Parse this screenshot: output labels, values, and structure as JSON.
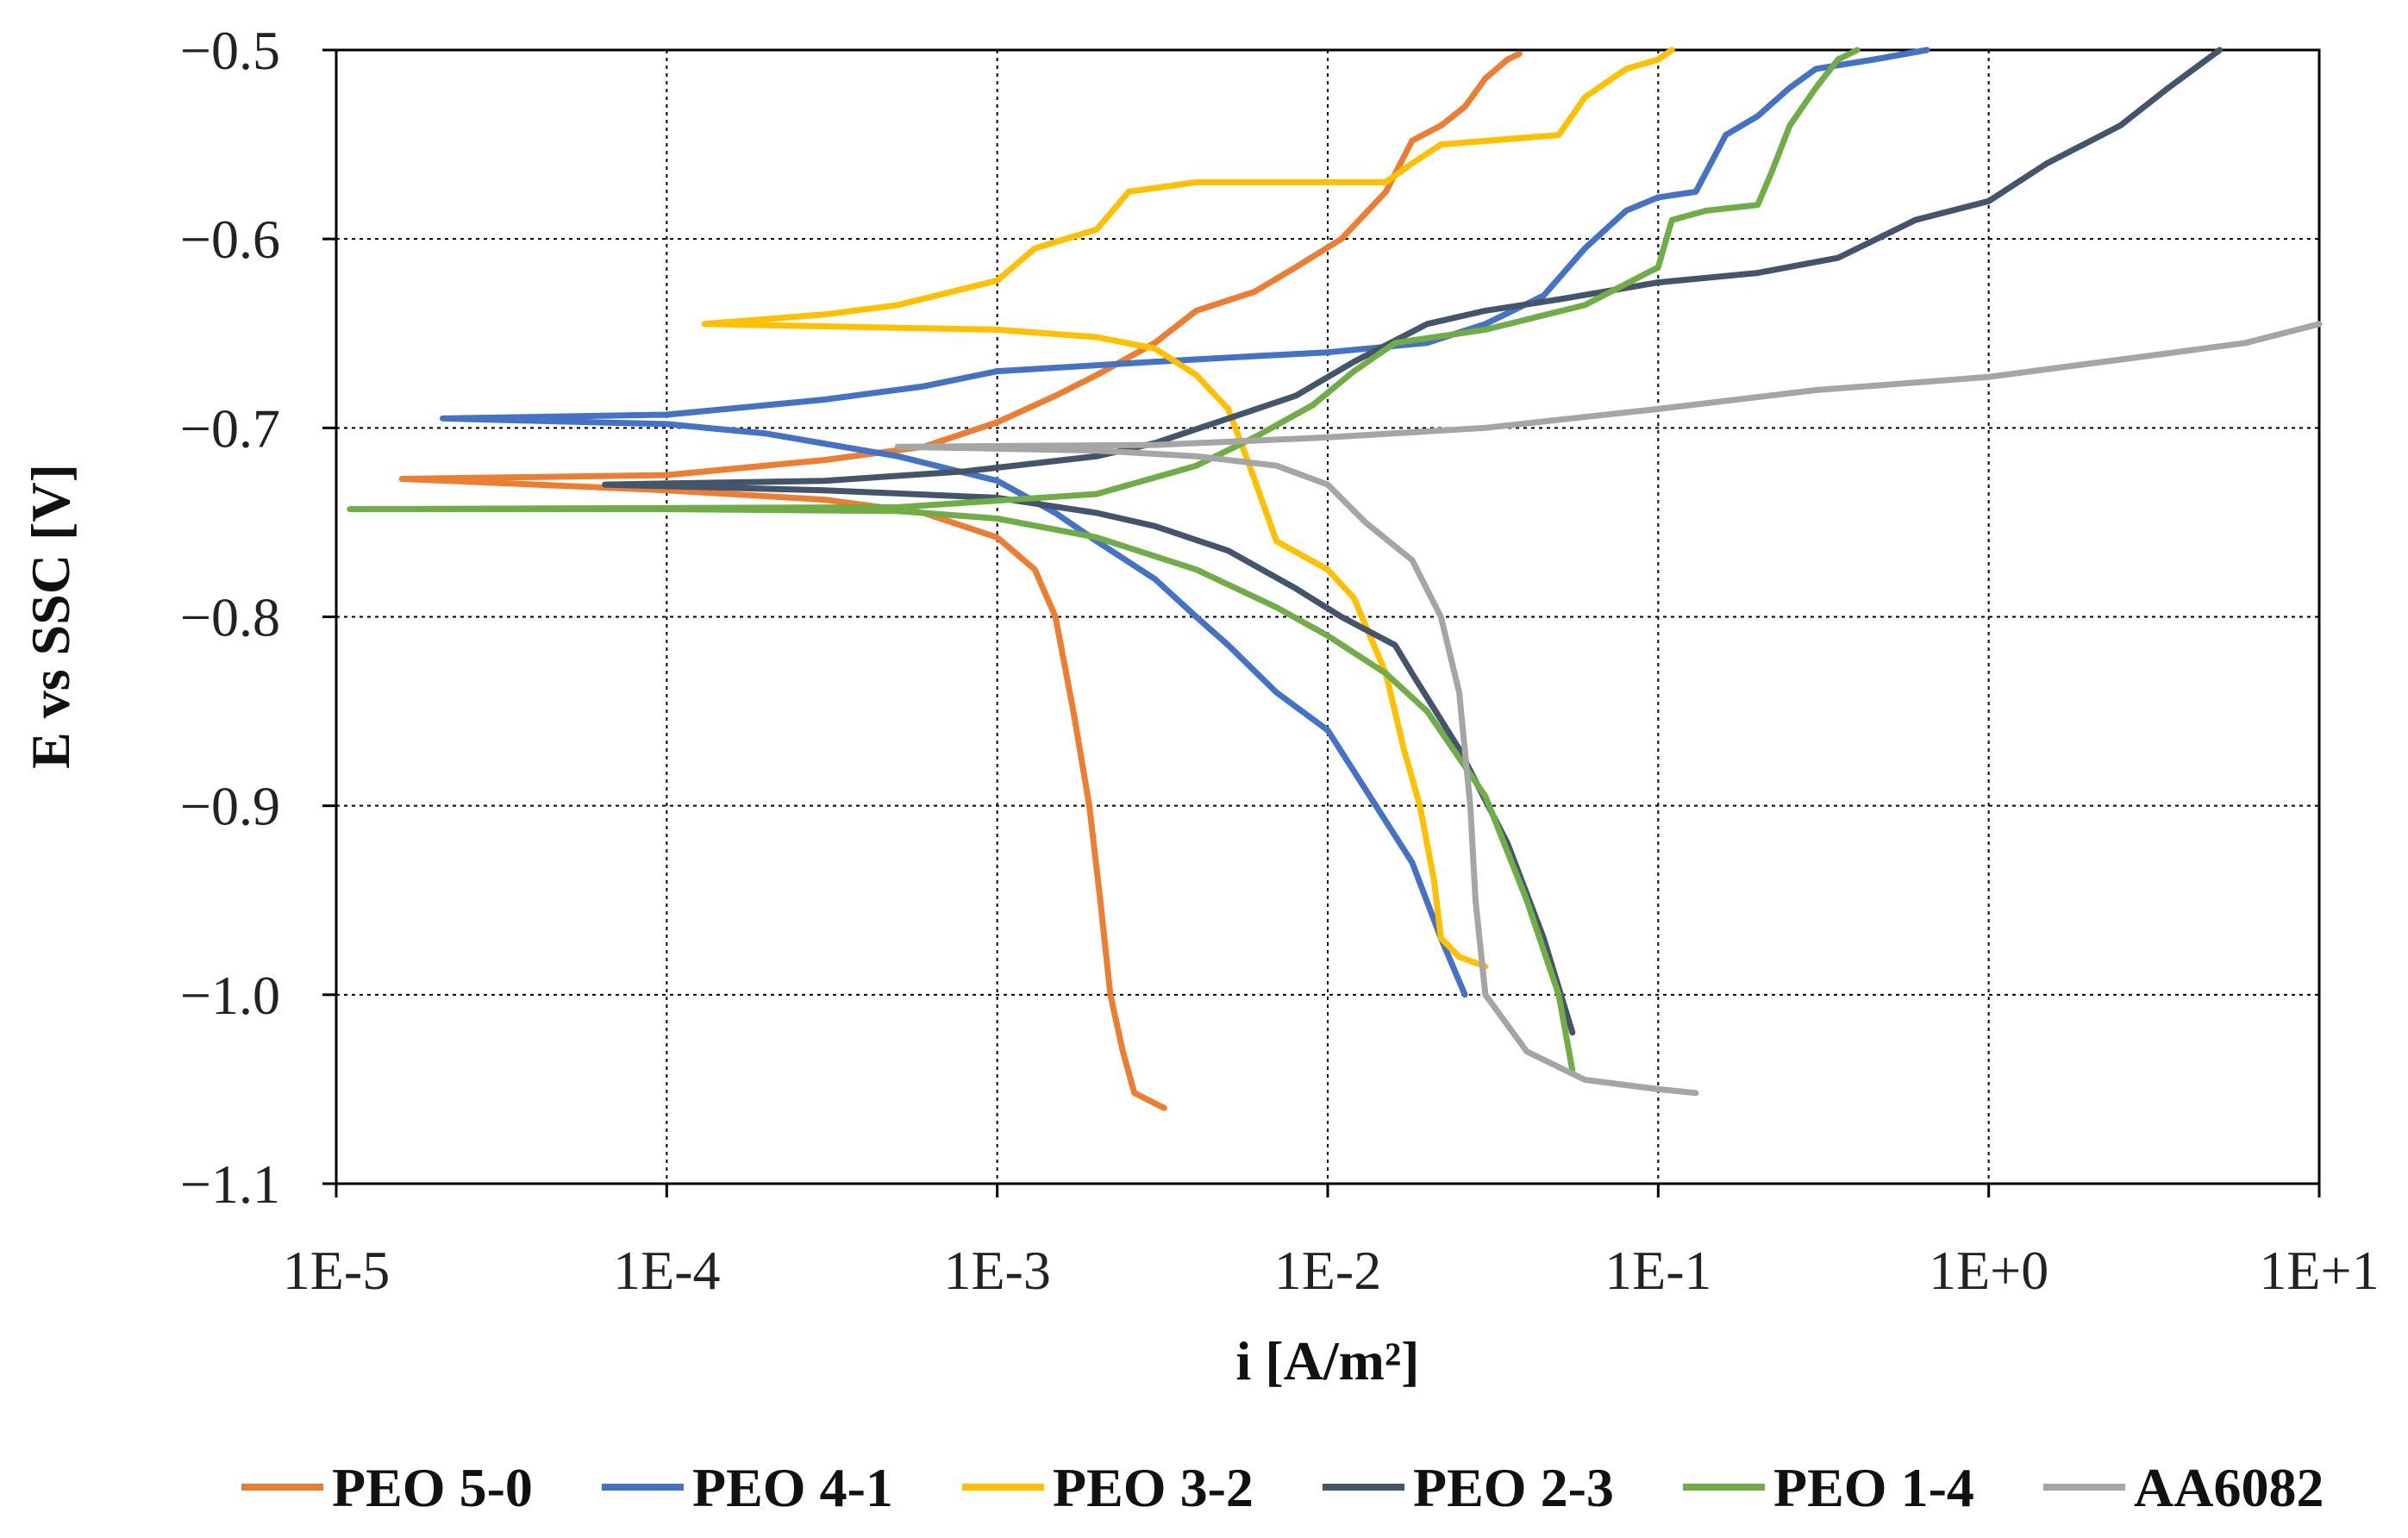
{
  "chart_data": {
    "type": "line",
    "xscale": "log",
    "xlabel": "i [A/m²]",
    "ylabel": "E  vs SSC [V]",
    "xlim": [
      1e-05,
      10
    ],
    "ylim": [
      -1.1,
      -0.5
    ],
    "grid": true,
    "legend_position": "bottom",
    "x_ticks": [
      {
        "value": 1e-05,
        "label": "1E-5"
      },
      {
        "value": 0.0001,
        "label": "1E-4"
      },
      {
        "value": 0.001,
        "label": "1E-3"
      },
      {
        "value": 0.01,
        "label": "1E-2"
      },
      {
        "value": 0.1,
        "label": "1E-1"
      },
      {
        "value": 1,
        "label": "1E+0"
      },
      {
        "value": 10,
        "label": "1E+1"
      }
    ],
    "y_ticks": [
      {
        "value": -0.5,
        "label": "−0.5"
      },
      {
        "value": -0.6,
        "label": "−0.6"
      },
      {
        "value": -0.7,
        "label": "−0.7"
      },
      {
        "value": -0.8,
        "label": "−0.8"
      },
      {
        "value": -0.9,
        "label": "−0.9"
      },
      {
        "value": -1.0,
        "label": "−1.0"
      },
      {
        "value": -1.1,
        "label": "−1.1"
      }
    ],
    "series": [
      {
        "name": "PEO 5-0",
        "color": "#ED7D31",
        "cathodic": [
          [
            1.58e-05,
            -0.727
          ],
          [
            0.0001,
            -0.733
          ],
          [
            0.0003,
            -0.738
          ],
          [
            0.0006,
            -0.745
          ],
          [
            0.001,
            -0.758
          ],
          [
            0.0013,
            -0.775
          ],
          [
            0.0015,
            -0.8
          ],
          [
            0.0017,
            -0.85
          ],
          [
            0.0019,
            -0.9
          ],
          [
            0.00205,
            -0.95
          ],
          [
            0.0022,
            -1.0
          ],
          [
            0.0024,
            -1.03
          ],
          [
            0.0026,
            -1.052
          ],
          [
            0.0032,
            -1.06
          ]
        ],
        "anodic": [
          [
            1.58e-05,
            -0.727
          ],
          [
            0.0001,
            -0.725
          ],
          [
            0.0003,
            -0.717
          ],
          [
            0.0006,
            -0.71
          ],
          [
            0.001,
            -0.697
          ],
          [
            0.0015,
            -0.683
          ],
          [
            0.002,
            -0.672
          ],
          [
            0.003,
            -0.655
          ],
          [
            0.004,
            -0.638
          ],
          [
            0.006,
            -0.628
          ],
          [
            0.008,
            -0.615
          ],
          [
            0.011,
            -0.6
          ],
          [
            0.015,
            -0.575
          ],
          [
            0.018,
            -0.548
          ],
          [
            0.022,
            -0.54
          ],
          [
            0.026,
            -0.53
          ],
          [
            0.03,
            -0.515
          ],
          [
            0.035,
            -0.505
          ],
          [
            0.038,
            -0.502
          ]
        ]
      },
      {
        "name": "PEO 4-1",
        "color": "#4472C4",
        "cathodic": [
          [
            2.1e-05,
            -0.695
          ],
          [
            0.0001,
            -0.698
          ],
          [
            0.0002,
            -0.703
          ],
          [
            0.0005,
            -0.715
          ],
          [
            0.001,
            -0.728
          ],
          [
            0.0015,
            -0.745
          ],
          [
            0.002,
            -0.76
          ],
          [
            0.003,
            -0.78
          ],
          [
            0.004,
            -0.8
          ],
          [
            0.005,
            -0.815
          ],
          [
            0.007,
            -0.84
          ],
          [
            0.01,
            -0.86
          ],
          [
            0.014,
            -0.9
          ],
          [
            0.018,
            -0.93
          ],
          [
            0.022,
            -0.97
          ],
          [
            0.026,
            -1.0
          ]
        ],
        "anodic": [
          [
            2.1e-05,
            -0.695
          ],
          [
            0.0001,
            -0.693
          ],
          [
            0.0003,
            -0.685
          ],
          [
            0.0006,
            -0.678
          ],
          [
            0.001,
            -0.67
          ],
          [
            0.003,
            -0.665
          ],
          [
            0.006,
            -0.662
          ],
          [
            0.01,
            -0.66
          ],
          [
            0.02,
            -0.655
          ],
          [
            0.03,
            -0.645
          ],
          [
            0.045,
            -0.63
          ],
          [
            0.06,
            -0.605
          ],
          [
            0.08,
            -0.585
          ],
          [
            0.1,
            -0.578
          ],
          [
            0.13,
            -0.575
          ],
          [
            0.16,
            -0.545
          ],
          [
            0.2,
            -0.535
          ],
          [
            0.25,
            -0.52
          ],
          [
            0.3,
            -0.51
          ],
          [
            0.45,
            -0.505
          ],
          [
            0.65,
            -0.5
          ]
        ]
      },
      {
        "name": "PEO 3-2",
        "color": "#FFC000",
        "cathodic": [
          [
            0.00013,
            -0.645
          ],
          [
            0.0005,
            -0.647
          ],
          [
            0.001,
            -0.648
          ],
          [
            0.002,
            -0.652
          ],
          [
            0.003,
            -0.658
          ],
          [
            0.004,
            -0.672
          ],
          [
            0.005,
            -0.69
          ],
          [
            0.0058,
            -0.72
          ],
          [
            0.007,
            -0.76
          ],
          [
            0.01,
            -0.775
          ],
          [
            0.012,
            -0.79
          ],
          [
            0.015,
            -0.83
          ],
          [
            0.017,
            -0.87
          ],
          [
            0.019,
            -0.9
          ],
          [
            0.021,
            -0.94
          ],
          [
            0.022,
            -0.97
          ],
          [
            0.025,
            -0.98
          ],
          [
            0.03,
            -0.985
          ]
        ],
        "anodic": [
          [
            0.00013,
            -0.645
          ],
          [
            0.0003,
            -0.64
          ],
          [
            0.0005,
            -0.635
          ],
          [
            0.001,
            -0.622
          ],
          [
            0.0013,
            -0.605
          ],
          [
            0.002,
            -0.595
          ],
          [
            0.0025,
            -0.575
          ],
          [
            0.004,
            -0.57
          ],
          [
            0.008,
            -0.57
          ],
          [
            0.015,
            -0.57
          ],
          [
            0.018,
            -0.56
          ],
          [
            0.022,
            -0.55
          ],
          [
            0.05,
            -0.545
          ],
          [
            0.06,
            -0.525
          ],
          [
            0.08,
            -0.51
          ],
          [
            0.1,
            -0.505
          ],
          [
            0.11,
            -0.5
          ]
        ]
      },
      {
        "name": "PEO 2-3",
        "color": "#44546A",
        "cathodic": [
          [
            6.5e-05,
            -0.73
          ],
          [
            0.0003,
            -0.733
          ],
          [
            0.001,
            -0.737
          ],
          [
            0.002,
            -0.745
          ],
          [
            0.003,
            -0.752
          ],
          [
            0.005,
            -0.765
          ],
          [
            0.008,
            -0.785
          ],
          [
            0.011,
            -0.8
          ],
          [
            0.016,
            -0.815
          ],
          [
            0.018,
            -0.83
          ],
          [
            0.025,
            -0.87
          ],
          [
            0.035,
            -0.92
          ],
          [
            0.045,
            -0.97
          ],
          [
            0.055,
            -1.02
          ]
        ],
        "anodic": [
          [
            6.5e-05,
            -0.73
          ],
          [
            0.0003,
            -0.728
          ],
          [
            0.0008,
            -0.723
          ],
          [
            0.002,
            -0.715
          ],
          [
            0.003,
            -0.708
          ],
          [
            0.005,
            -0.695
          ],
          [
            0.008,
            -0.683
          ],
          [
            0.012,
            -0.665
          ],
          [
            0.02,
            -0.645
          ],
          [
            0.03,
            -0.638
          ],
          [
            0.05,
            -0.632
          ],
          [
            0.1,
            -0.623
          ],
          [
            0.2,
            -0.618
          ],
          [
            0.35,
            -0.61
          ],
          [
            0.6,
            -0.59
          ],
          [
            1.0,
            -0.58
          ],
          [
            1.5,
            -0.56
          ],
          [
            2.5,
            -0.54
          ],
          [
            3.5,
            -0.52
          ],
          [
            5.0,
            -0.5
          ]
        ]
      },
      {
        "name": "PEO 1-4",
        "color": "#70AD47",
        "cathodic": [
          [
            1.1e-05,
            -0.743
          ],
          [
            0.0001,
            -0.743
          ],
          [
            0.0005,
            -0.744
          ],
          [
            0.001,
            -0.748
          ],
          [
            0.002,
            -0.758
          ],
          [
            0.004,
            -0.775
          ],
          [
            0.007,
            -0.795
          ],
          [
            0.01,
            -0.81
          ],
          [
            0.015,
            -0.83
          ],
          [
            0.02,
            -0.85
          ],
          [
            0.03,
            -0.895
          ],
          [
            0.04,
            -0.95
          ],
          [
            0.05,
            -1.0
          ],
          [
            0.055,
            -1.04
          ]
        ],
        "anodic": [
          [
            1.1e-05,
            -0.743
          ],
          [
            0.0005,
            -0.742
          ],
          [
            0.002,
            -0.735
          ],
          [
            0.004,
            -0.72
          ],
          [
            0.006,
            -0.705
          ],
          [
            0.009,
            -0.688
          ],
          [
            0.012,
            -0.67
          ],
          [
            0.016,
            -0.655
          ],
          [
            0.03,
            -0.648
          ],
          [
            0.06,
            -0.635
          ],
          [
            0.1,
            -0.615
          ],
          [
            0.11,
            -0.59
          ],
          [
            0.14,
            -0.585
          ],
          [
            0.2,
            -0.582
          ],
          [
            0.22,
            -0.565
          ],
          [
            0.25,
            -0.54
          ],
          [
            0.3,
            -0.52
          ],
          [
            0.35,
            -0.505
          ],
          [
            0.4,
            -0.5
          ]
        ]
      },
      {
        "name": "AA6082",
        "color": "#A5A5A5",
        "cathodic": [
          [
            0.0005,
            -0.71
          ],
          [
            0.002,
            -0.712
          ],
          [
            0.004,
            -0.715
          ],
          [
            0.007,
            -0.72
          ],
          [
            0.01,
            -0.73
          ],
          [
            0.013,
            -0.75
          ],
          [
            0.018,
            -0.77
          ],
          [
            0.022,
            -0.8
          ],
          [
            0.025,
            -0.84
          ],
          [
            0.027,
            -0.9
          ],
          [
            0.028,
            -0.95
          ],
          [
            0.03,
            -1.0
          ],
          [
            0.04,
            -1.03
          ],
          [
            0.06,
            -1.045
          ],
          [
            0.1,
            -1.05
          ],
          [
            0.13,
            -1.052
          ]
        ],
        "anodic": [
          [
            0.0005,
            -0.71
          ],
          [
            0.003,
            -0.709
          ],
          [
            0.01,
            -0.705
          ],
          [
            0.03,
            -0.7
          ],
          [
            0.1,
            -0.69
          ],
          [
            0.3,
            -0.68
          ],
          [
            1.0,
            -0.673
          ],
          [
            3.0,
            -0.662
          ],
          [
            6.0,
            -0.655
          ],
          [
            10,
            -0.645
          ]
        ]
      }
    ]
  }
}
